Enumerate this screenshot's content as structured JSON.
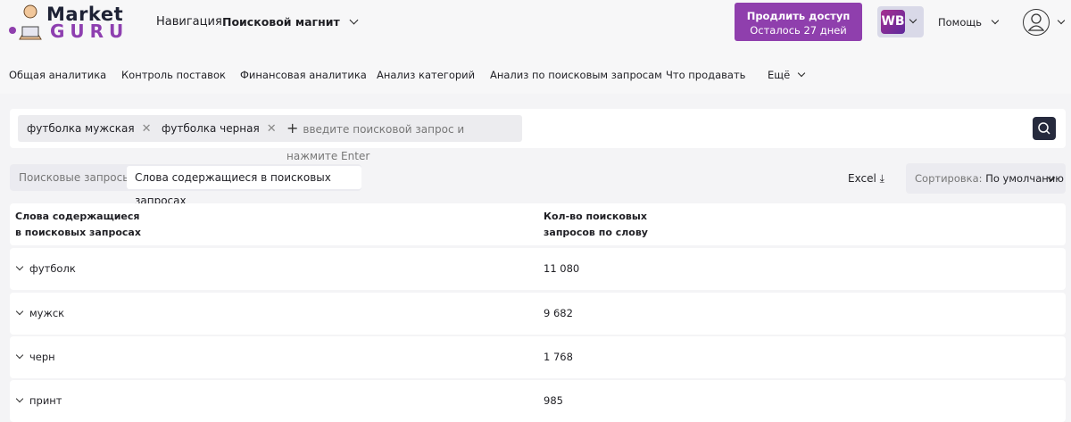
{
  "header": {
    "logo_top": "Market",
    "logo_bottom": "GURU",
    "nav_label": "Навигация",
    "nav_value": "Поисковой магнит",
    "promo_title": "Продлить доступ",
    "promo_sub": "Осталось 27 дней",
    "marketplace": "WB",
    "help": "Помощь"
  },
  "nav": {
    "items": [
      "Общая аналитика",
      "Контроль поставок",
      "Финансовая аналитика",
      "Анализ категорий",
      "Анализ по поисковым запросам",
      "Что продавать",
      "Ещё"
    ]
  },
  "search": {
    "chips": [
      "футболка мужская",
      "футболка черная"
    ],
    "placeholder": "введите поисковой запрос и нажмите Enter"
  },
  "tabs": [
    "Поисковые запросы",
    "Слова содержащиеся в поисковых запросах"
  ],
  "active_tab": 1,
  "toolbar": {
    "excel": "Excel",
    "sort_label": "Сортировка:",
    "sort_value": "По умолчанию"
  },
  "table": {
    "headers": [
      "Слова содержащиеся в поисковых запросах",
      "Кол-во поисковых запросов по слову"
    ],
    "rows": [
      {
        "word": "футболк",
        "count": "11 080"
      },
      {
        "word": "мужск",
        "count": "9 682"
      },
      {
        "word": "черн",
        "count": "1 768"
      },
      {
        "word": "принт",
        "count": "985"
      }
    ]
  },
  "colors": {
    "accent": "#8f3fad",
    "search_button": "#262a3d"
  }
}
